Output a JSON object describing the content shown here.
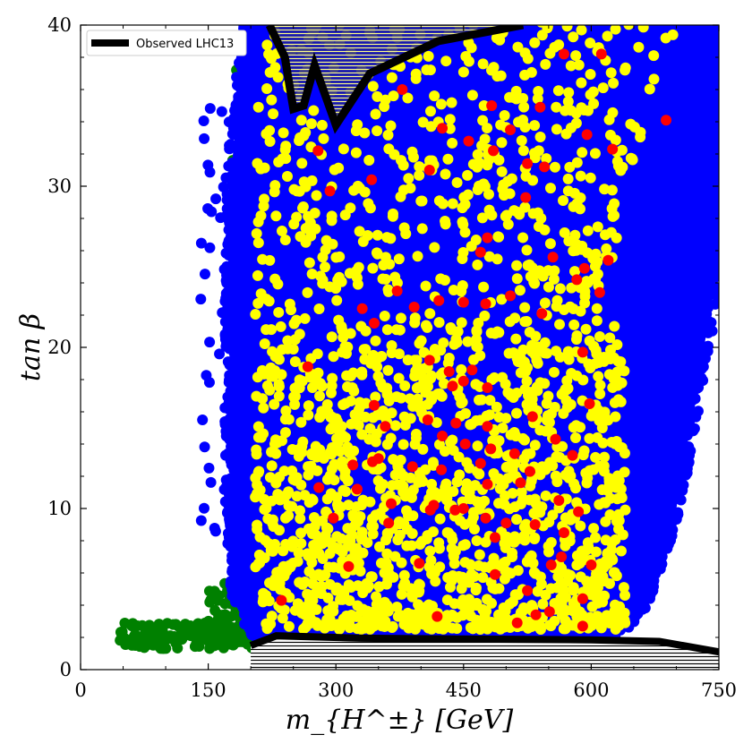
{
  "chart_data": {
    "type": "scatter",
    "xlabel": "m_{H^±} [GeV]",
    "ylabel": "tan β",
    "xlim": [
      0,
      750
    ],
    "ylim": [
      0,
      40
    ],
    "xticks": [
      "0",
      "150",
      "300",
      "450",
      "600",
      "750"
    ],
    "yticks": [
      "0",
      "10",
      "20",
      "30",
      "40"
    ],
    "grid": false,
    "legend": {
      "position": "top-left",
      "entries": [
        {
          "label": "Observed LHC13",
          "color": "#000000"
        }
      ]
    },
    "colors": {
      "blue": "#0000ff",
      "yellow": "#ffff00",
      "red": "#ff0000",
      "green": "#008000",
      "contour": "#000000"
    },
    "regions": {
      "blue_envelope": [
        [
          195,
          40
        ],
        [
          175,
          30
        ],
        [
          175,
          10
        ],
        [
          182,
          4
        ],
        [
          205,
          2
        ],
        [
          630,
          2
        ],
        [
          660,
          4
        ],
        [
          700,
          10
        ],
        [
          765,
          30
        ],
        [
          775,
          40
        ]
      ],
      "green_envelope": [
        [
          45,
          2.5
        ],
        [
          100,
          3
        ],
        [
          175,
          4
        ],
        [
          185,
          20
        ],
        [
          200,
          36
        ],
        [
          215,
          40
        ],
        [
          200,
          1.6
        ],
        [
          45,
          1.5
        ]
      ],
      "yellow_envelope": [
        [
          200,
          40
        ],
        [
          210,
          3
        ],
        [
          640,
          3
        ],
        [
          640,
          30
        ],
        [
          700,
          40
        ]
      ],
      "exclusion_top": [
        [
          222,
          40
        ],
        [
          240,
          38
        ],
        [
          250,
          34.8
        ],
        [
          262,
          35
        ],
        [
          275,
          37.5
        ],
        [
          300,
          33.8
        ],
        [
          340,
          37
        ],
        [
          420,
          39
        ],
        [
          520,
          40
        ]
      ],
      "exclusion_bottom": [
        [
          200,
          1.5
        ],
        [
          230,
          2.1
        ],
        [
          330,
          1.95
        ],
        [
          450,
          1.9
        ],
        [
          600,
          1.85
        ],
        [
          680,
          1.75
        ],
        [
          750,
          1.1
        ]
      ]
    },
    "red_points": [
      [
        378,
        36
      ],
      [
        425,
        33.6
      ],
      [
        483,
        35
      ],
      [
        505,
        33.5
      ],
      [
        540,
        34.9
      ],
      [
        568,
        38.2
      ],
      [
        612,
        38.2
      ],
      [
        595,
        33.2
      ],
      [
        625,
        32.3
      ],
      [
        688,
        34.1
      ],
      [
        279,
        32.2
      ],
      [
        293,
        29.7
      ],
      [
        342,
        30.4
      ],
      [
        410,
        31
      ],
      [
        456,
        32.8
      ],
      [
        485,
        32.2
      ],
      [
        525,
        31.4
      ],
      [
        545,
        31.2
      ],
      [
        478,
        26.8
      ],
      [
        470,
        25.9
      ],
      [
        523,
        29.3
      ],
      [
        555,
        25.6
      ],
      [
        583,
        24.2
      ],
      [
        592,
        24.9
      ],
      [
        620,
        25.4
      ],
      [
        610,
        23.4
      ],
      [
        372,
        23.5
      ],
      [
        331,
        22.4
      ],
      [
        345,
        21.5
      ],
      [
        392,
        22.5
      ],
      [
        421,
        22.9
      ],
      [
        450,
        22.8
      ],
      [
        476,
        22.7
      ],
      [
        505,
        23.2
      ],
      [
        542,
        22.1
      ],
      [
        590,
        19.7
      ],
      [
        267,
        18.8
      ],
      [
        410,
        19.2
      ],
      [
        433,
        18.5
      ],
      [
        437,
        17.6
      ],
      [
        460,
        18.6
      ],
      [
        478,
        17.5
      ],
      [
        450,
        17.9
      ],
      [
        598,
        16.5
      ],
      [
        345,
        16.4
      ],
      [
        358,
        15.1
      ],
      [
        408,
        15.5
      ],
      [
        441,
        15.3
      ],
      [
        478,
        15.1
      ],
      [
        531,
        15.7
      ],
      [
        425,
        14.5
      ],
      [
        452,
        14
      ],
      [
        482,
        13.7
      ],
      [
        510,
        13.4
      ],
      [
        558,
        14.3
      ],
      [
        578,
        13.3
      ],
      [
        350,
        13.1
      ],
      [
        343,
        12.9
      ],
      [
        320,
        12.7
      ],
      [
        390,
        12.6
      ],
      [
        424,
        12.4
      ],
      [
        470,
        12.8
      ],
      [
        528,
        12.3
      ],
      [
        280,
        11.3
      ],
      [
        325,
        11.2
      ],
      [
        365,
        10.3
      ],
      [
        415,
        10.2
      ],
      [
        450,
        10
      ],
      [
        478,
        11.5
      ],
      [
        517,
        11.6
      ],
      [
        562,
        10.5
      ],
      [
        585,
        9.8
      ],
      [
        297,
        9.4
      ],
      [
        362,
        9.1
      ],
      [
        411,
        9.9
      ],
      [
        440,
        9.9
      ],
      [
        476,
        9.4
      ],
      [
        500,
        9.1
      ],
      [
        534,
        9
      ],
      [
        568,
        8.5
      ],
      [
        487,
        8.2
      ],
      [
        315,
        6.4
      ],
      [
        398,
        6.6
      ],
      [
        487,
        5.9
      ],
      [
        525,
        4.9
      ],
      [
        553,
        6.5
      ],
      [
        565,
        7
      ],
      [
        600,
        6.5
      ],
      [
        590,
        4.4
      ],
      [
        236,
        4.3
      ],
      [
        419,
        3.3
      ],
      [
        513,
        2.9
      ],
      [
        535,
        3.4
      ],
      [
        551,
        3.6
      ],
      [
        590,
        2.7
      ]
    ]
  }
}
